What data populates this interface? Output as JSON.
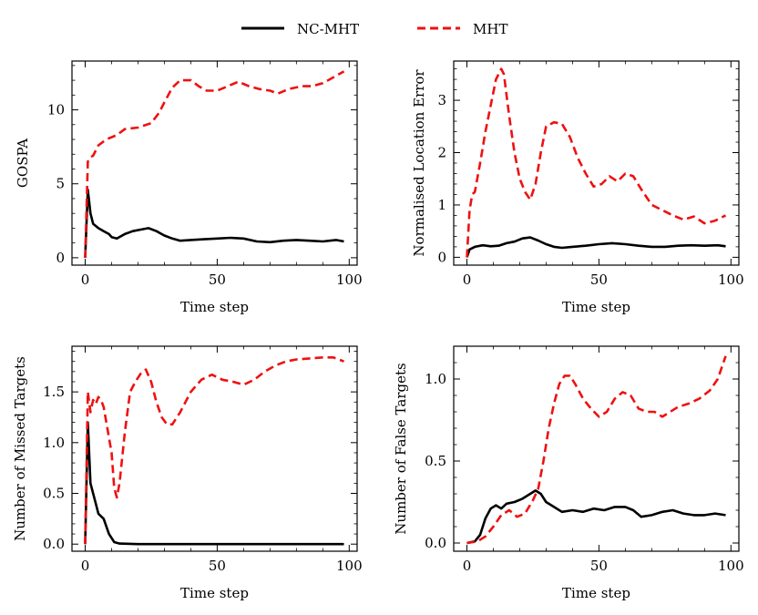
{
  "legend": {
    "items": [
      {
        "name": "NC-MHT",
        "color": "#000000",
        "dash": "solid"
      },
      {
        "name": "MHT",
        "color": "#ee1111",
        "dash": "dashed"
      }
    ]
  },
  "chart_data": [
    {
      "type": "line",
      "xlabel": "Time step",
      "ylabel": "GOSPA",
      "xlim": [
        -5,
        103
      ],
      "ylim": [
        -0.5,
        13.3
      ],
      "xticks": [
        0,
        50,
        100
      ],
      "xtick_labels": [
        "0",
        "50",
        "100"
      ],
      "yticks": [
        0,
        5,
        10
      ],
      "ytick_labels": [
        "0",
        "5",
        "10"
      ],
      "series": [
        {
          "name": "NC-MHT",
          "color": "#000000",
          "dash": "solid",
          "points": [
            [
              0,
              0
            ],
            [
              1,
              4.6
            ],
            [
              2,
              3.0
            ],
            [
              3,
              2.3
            ],
            [
              5,
              2.0
            ],
            [
              7,
              1.8
            ],
            [
              9,
              1.6
            ],
            [
              10,
              1.4
            ],
            [
              12,
              1.3
            ],
            [
              15,
              1.6
            ],
            [
              18,
              1.8
            ],
            [
              21,
              1.9
            ],
            [
              24,
              2.0
            ],
            [
              27,
              1.8
            ],
            [
              30,
              1.5
            ],
            [
              33,
              1.3
            ],
            [
              36,
              1.15
            ],
            [
              40,
              1.2
            ],
            [
              45,
              1.25
            ],
            [
              50,
              1.3
            ],
            [
              55,
              1.35
            ],
            [
              60,
              1.3
            ],
            [
              65,
              1.1
            ],
            [
              70,
              1.05
            ],
            [
              75,
              1.15
            ],
            [
              80,
              1.2
            ],
            [
              85,
              1.15
            ],
            [
              90,
              1.1
            ],
            [
              95,
              1.2
            ],
            [
              98,
              1.1
            ]
          ]
        },
        {
          "name": "MHT",
          "color": "#ee1111",
          "dash": "dashed",
          "points": [
            [
              0,
              0
            ],
            [
              1,
              6.5
            ],
            [
              2,
              6.8
            ],
            [
              3,
              6.9
            ],
            [
              5,
              7.6
            ],
            [
              8,
              8.0
            ],
            [
              12,
              8.3
            ],
            [
              15,
              8.7
            ],
            [
              20,
              8.8
            ],
            [
              25,
              9.1
            ],
            [
              28,
              9.8
            ],
            [
              30,
              10.5
            ],
            [
              33,
              11.5
            ],
            [
              36,
              12.0
            ],
            [
              40,
              12.0
            ],
            [
              43,
              11.6
            ],
            [
              46,
              11.3
            ],
            [
              50,
              11.3
            ],
            [
              54,
              11.6
            ],
            [
              58,
              11.9
            ],
            [
              62,
              11.6
            ],
            [
              66,
              11.4
            ],
            [
              70,
              11.3
            ],
            [
              73,
              11.1
            ],
            [
              77,
              11.4
            ],
            [
              82,
              11.6
            ],
            [
              86,
              11.6
            ],
            [
              90,
              11.8
            ],
            [
              94,
              12.2
            ],
            [
              98,
              12.6
            ]
          ]
        }
      ]
    },
    {
      "type": "line",
      "xlabel": "Time step",
      "ylabel": "Normalised Location Error",
      "xlim": [
        -5,
        103
      ],
      "ylim": [
        -0.15,
        3.75
      ],
      "xticks": [
        0,
        50,
        100
      ],
      "xtick_labels": [
        "0",
        "50",
        "100"
      ],
      "yticks": [
        0,
        1,
        2,
        3
      ],
      "ytick_labels": [
        "0",
        "1",
        "2",
        "3"
      ],
      "series": [
        {
          "name": "NC-MHT",
          "color": "#000000",
          "dash": "solid",
          "points": [
            [
              0,
              0
            ],
            [
              1,
              0.15
            ],
            [
              3,
              0.2
            ],
            [
              6,
              0.23
            ],
            [
              9,
              0.21
            ],
            [
              12,
              0.22
            ],
            [
              15,
              0.27
            ],
            [
              18,
              0.3
            ],
            [
              21,
              0.36
            ],
            [
              24,
              0.38
            ],
            [
              27,
              0.32
            ],
            [
              30,
              0.25
            ],
            [
              33,
              0.2
            ],
            [
              36,
              0.18
            ],
            [
              40,
              0.2
            ],
            [
              45,
              0.22
            ],
            [
              50,
              0.25
            ],
            [
              55,
              0.27
            ],
            [
              60,
              0.25
            ],
            [
              65,
              0.22
            ],
            [
              70,
              0.2
            ],
            [
              75,
              0.2
            ],
            [
              80,
              0.22
            ],
            [
              85,
              0.23
            ],
            [
              90,
              0.22
            ],
            [
              95,
              0.23
            ],
            [
              98,
              0.21
            ]
          ]
        },
        {
          "name": "MHT",
          "color": "#ee1111",
          "dash": "dashed",
          "points": [
            [
              0,
              0
            ],
            [
              1,
              0.9
            ],
            [
              2,
              1.2
            ],
            [
              3,
              1.25
            ],
            [
              5,
              1.8
            ],
            [
              7,
              2.4
            ],
            [
              9,
              2.9
            ],
            [
              11,
              3.4
            ],
            [
              13,
              3.6
            ],
            [
              14,
              3.5
            ],
            [
              16,
              2.7
            ],
            [
              18,
              2.0
            ],
            [
              20,
              1.5
            ],
            [
              22,
              1.25
            ],
            [
              24,
              1.1
            ],
            [
              26,
              1.4
            ],
            [
              28,
              2.0
            ],
            [
              30,
              2.5
            ],
            [
              33,
              2.58
            ],
            [
              36,
              2.55
            ],
            [
              39,
              2.3
            ],
            [
              42,
              1.9
            ],
            [
              45,
              1.6
            ],
            [
              48,
              1.35
            ],
            [
              51,
              1.4
            ],
            [
              54,
              1.55
            ],
            [
              57,
              1.45
            ],
            [
              60,
              1.6
            ],
            [
              63,
              1.55
            ],
            [
              66,
              1.3
            ],
            [
              70,
              1.0
            ],
            [
              74,
              0.9
            ],
            [
              78,
              0.8
            ],
            [
              82,
              0.72
            ],
            [
              86,
              0.78
            ],
            [
              90,
              0.65
            ],
            [
              94,
              0.7
            ],
            [
              98,
              0.8
            ]
          ]
        }
      ]
    },
    {
      "type": "line",
      "xlabel": "Time step",
      "ylabel": "Number of Missed Targets",
      "xlim": [
        -5,
        103
      ],
      "ylim": [
        -0.07,
        1.95
      ],
      "xticks": [
        0,
        50,
        100
      ],
      "xtick_labels": [
        "0",
        "50",
        "100"
      ],
      "yticks": [
        0,
        0.5,
        1.0,
        1.5
      ],
      "ytick_labels": [
        "0.0",
        "0.5",
        "1.0",
        "1.5"
      ],
      "series": [
        {
          "name": "NC-MHT",
          "color": "#000000",
          "dash": "solid",
          "points": [
            [
              0,
              0
            ],
            [
              1,
              1.2
            ],
            [
              2,
              0.6
            ],
            [
              3,
              0.5
            ],
            [
              4,
              0.4
            ],
            [
              5,
              0.3
            ],
            [
              7,
              0.25
            ],
            [
              9,
              0.1
            ],
            [
              11,
              0.02
            ],
            [
              13,
              0.005
            ],
            [
              20,
              0.0
            ],
            [
              40,
              0.0
            ],
            [
              60,
              0.0
            ],
            [
              80,
              0.0
            ],
            [
              98,
              0.0
            ]
          ]
        },
        {
          "name": "MHT",
          "color": "#ee1111",
          "dash": "dashed",
          "points": [
            [
              0,
              0
            ],
            [
              1,
              1.5
            ],
            [
              2,
              1.3
            ],
            [
              3,
              1.42
            ],
            [
              4,
              1.38
            ],
            [
              5,
              1.45
            ],
            [
              6,
              1.42
            ],
            [
              7,
              1.35
            ],
            [
              8,
              1.2
            ],
            [
              10,
              0.9
            ],
            [
              11,
              0.55
            ],
            [
              12,
              0.46
            ],
            [
              13,
              0.6
            ],
            [
              15,
              1.1
            ],
            [
              17,
              1.5
            ],
            [
              19,
              1.6
            ],
            [
              21,
              1.68
            ],
            [
              23,
              1.72
            ],
            [
              25,
              1.6
            ],
            [
              27,
              1.4
            ],
            [
              29,
              1.25
            ],
            [
              31,
              1.18
            ],
            [
              33,
              1.18
            ],
            [
              36,
              1.3
            ],
            [
              40,
              1.5
            ],
            [
              44,
              1.62
            ],
            [
              48,
              1.67
            ],
            [
              52,
              1.62
            ],
            [
              56,
              1.6
            ],
            [
              60,
              1.57
            ],
            [
              64,
              1.62
            ],
            [
              68,
              1.7
            ],
            [
              72,
              1.76
            ],
            [
              76,
              1.8
            ],
            [
              80,
              1.82
            ],
            [
              85,
              1.83
            ],
            [
              90,
              1.84
            ],
            [
              94,
              1.84
            ],
            [
              98,
              1.8
            ]
          ]
        }
      ]
    },
    {
      "type": "line",
      "xlabel": "Time step",
      "ylabel": "Number of False Targets",
      "xlim": [
        -5,
        103
      ],
      "ylim": [
        -0.05,
        1.2
      ],
      "xticks": [
        0,
        50,
        100
      ],
      "xtick_labels": [
        "0",
        "50",
        "100"
      ],
      "yticks": [
        0,
        0.5,
        1.0
      ],
      "ytick_labels": [
        "0.0",
        "0.5",
        "1.0"
      ],
      "series": [
        {
          "name": "NC-MHT",
          "color": "#000000",
          "dash": "solid",
          "points": [
            [
              0,
              0
            ],
            [
              3,
              0.01
            ],
            [
              5,
              0.05
            ],
            [
              7,
              0.15
            ],
            [
              9,
              0.21
            ],
            [
              11,
              0.23
            ],
            [
              13,
              0.21
            ],
            [
              15,
              0.24
            ],
            [
              18,
              0.25
            ],
            [
              21,
              0.27
            ],
            [
              24,
              0.3
            ],
            [
              26,
              0.32
            ],
            [
              28,
              0.3
            ],
            [
              30,
              0.25
            ],
            [
              33,
              0.22
            ],
            [
              36,
              0.19
            ],
            [
              40,
              0.2
            ],
            [
              44,
              0.19
            ],
            [
              48,
              0.21
            ],
            [
              52,
              0.2
            ],
            [
              56,
              0.22
            ],
            [
              60,
              0.22
            ],
            [
              63,
              0.2
            ],
            [
              66,
              0.16
            ],
            [
              70,
              0.17
            ],
            [
              74,
              0.19
            ],
            [
              78,
              0.2
            ],
            [
              82,
              0.18
            ],
            [
              86,
              0.17
            ],
            [
              90,
              0.17
            ],
            [
              94,
              0.18
            ],
            [
              98,
              0.17
            ]
          ]
        },
        {
          "name": "MHT",
          "color": "#ee1111",
          "dash": "dashed",
          "points": [
            [
              0,
              0
            ],
            [
              4,
              0.01
            ],
            [
              7,
              0.04
            ],
            [
              10,
              0.1
            ],
            [
              13,
              0.17
            ],
            [
              16,
              0.2
            ],
            [
              19,
              0.16
            ],
            [
              22,
              0.18
            ],
            [
              25,
              0.26
            ],
            [
              27,
              0.33
            ],
            [
              29,
              0.5
            ],
            [
              31,
              0.7
            ],
            [
              33,
              0.85
            ],
            [
              35,
              0.97
            ],
            [
              37,
              1.02
            ],
            [
              39,
              1.02
            ],
            [
              41,
              0.97
            ],
            [
              44,
              0.88
            ],
            [
              47,
              0.82
            ],
            [
              50,
              0.77
            ],
            [
              53,
              0.8
            ],
            [
              56,
              0.88
            ],
            [
              59,
              0.92
            ],
            [
              62,
              0.9
            ],
            [
              65,
              0.82
            ],
            [
              68,
              0.8
            ],
            [
              71,
              0.8
            ],
            [
              74,
              0.77
            ],
            [
              77,
              0.8
            ],
            [
              80,
              0.83
            ],
            [
              84,
              0.85
            ],
            [
              88,
              0.88
            ],
            [
              92,
              0.93
            ],
            [
              95,
              1.0
            ],
            [
              98,
              1.14
            ]
          ]
        }
      ]
    }
  ]
}
